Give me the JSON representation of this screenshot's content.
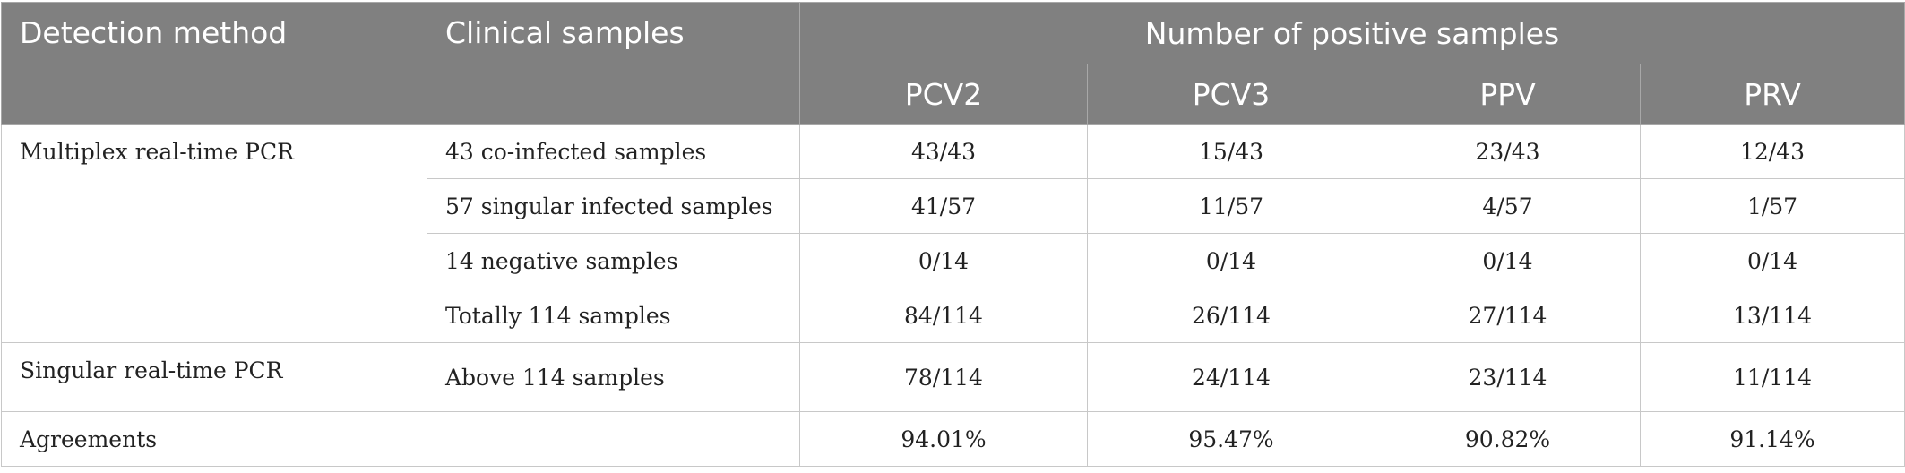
{
  "table": {
    "header": {
      "detection_method": "Detection method",
      "clinical_samples": "Clinical samples",
      "group": "Number of positive samples",
      "columns": [
        "PCV2",
        "PCV3",
        "PPV",
        "PRV"
      ]
    },
    "groups": [
      {
        "method": "Multiplex real-time PCR",
        "rows": [
          {
            "sample": "43 co-infected samples",
            "values": [
              "43/43",
              "15/43",
              "23/43",
              "12/43"
            ]
          },
          {
            "sample": "57 singular infected samples",
            "values": [
              "41/57",
              "11/57",
              "4/57",
              "1/57"
            ]
          },
          {
            "sample": "14 negative samples",
            "values": [
              "0/14",
              "0/14",
              "0/14",
              "0/14"
            ]
          },
          {
            "sample": "Totally 114 samples",
            "values": [
              "84/114",
              "26/114",
              "27/114",
              "13/114"
            ]
          }
        ]
      },
      {
        "method": "Singular real-time PCR",
        "rows": [
          {
            "sample": "Above 114 samples",
            "values": [
              "78/114",
              "24/114",
              "23/114",
              "11/114"
            ]
          }
        ]
      }
    ],
    "agreements": {
      "label": "Agreements",
      "values": [
        "94.01%",
        "95.47%",
        "90.82%",
        "91.14%"
      ]
    }
  }
}
